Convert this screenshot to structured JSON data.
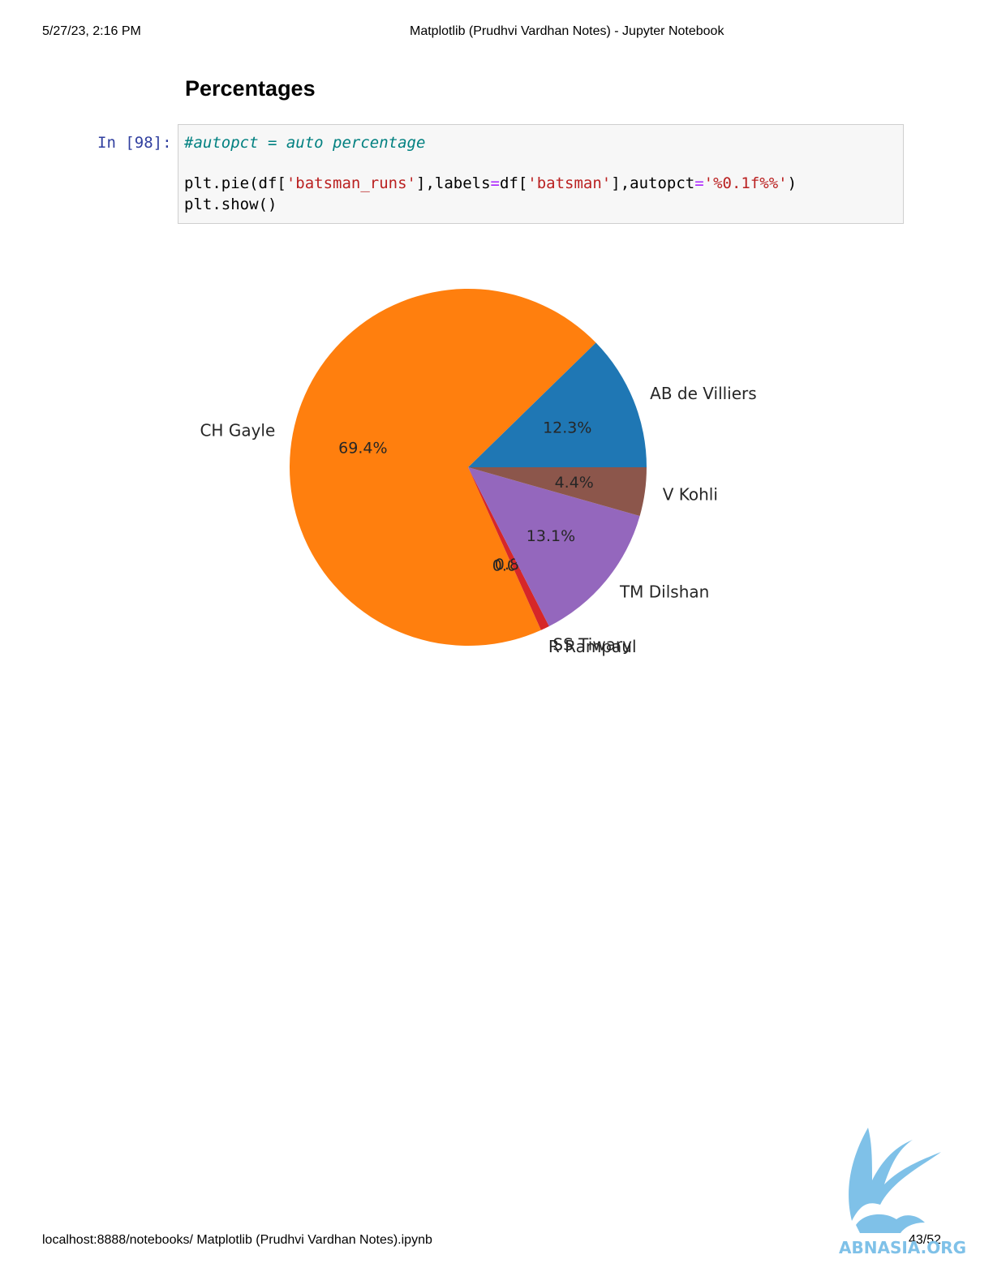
{
  "print_header": {
    "datetime": "5/27/23, 2:16 PM",
    "title": "Matplotlib (Prudhvi Vardhan Notes) - Jupyter Notebook"
  },
  "section_title": "Percentages",
  "cell": {
    "prompt": "In [98]:",
    "comment": "#autopct = auto percentage",
    "code_parts": {
      "p1": "plt.pie(df[",
      "s1": "'batsman_runs'",
      "p2": "],labels",
      "eq1": "=",
      "p3": "df[",
      "s2": "'batsman'",
      "p4": "],autopct",
      "eq2": "=",
      "s3": "'%0.1f%%'",
      "p5": ")"
    },
    "line3": "plt.show()"
  },
  "chart_data": {
    "type": "pie",
    "start_angle_deg": 0,
    "direction": "counterclockwise",
    "slices": [
      {
        "label": "AB de Villiers",
        "value": 12.3,
        "pct_label": "12.3%",
        "color": "#1f77b4"
      },
      {
        "label": "CH Gayle",
        "value": 69.4,
        "pct_label": "69.4%",
        "color": "#ff7f0e"
      },
      {
        "label": "R Rampaul",
        "value": 0.0,
        "pct_label": "0.0%",
        "color": "#2ca02c"
      },
      {
        "label": "SS Tiwary",
        "value": 0.8,
        "pct_label": "0.8%",
        "color": "#d62728"
      },
      {
        "label": "TM Dilshan",
        "value": 13.1,
        "pct_label": "13.1%",
        "color": "#9467bd"
      },
      {
        "label": "V Kohli",
        "value": 4.4,
        "pct_label": "4.4%",
        "color": "#8c564b"
      }
    ]
  },
  "print_footer": {
    "url": "localhost:8888/notebooks/ Matplotlib (Prudhvi Vardhan Notes).ipynb",
    "page": "43/52"
  },
  "watermark": {
    "text": "ABNASIA.ORG",
    "icon": "griffin-logo-icon",
    "color": "#7fc1e8"
  }
}
